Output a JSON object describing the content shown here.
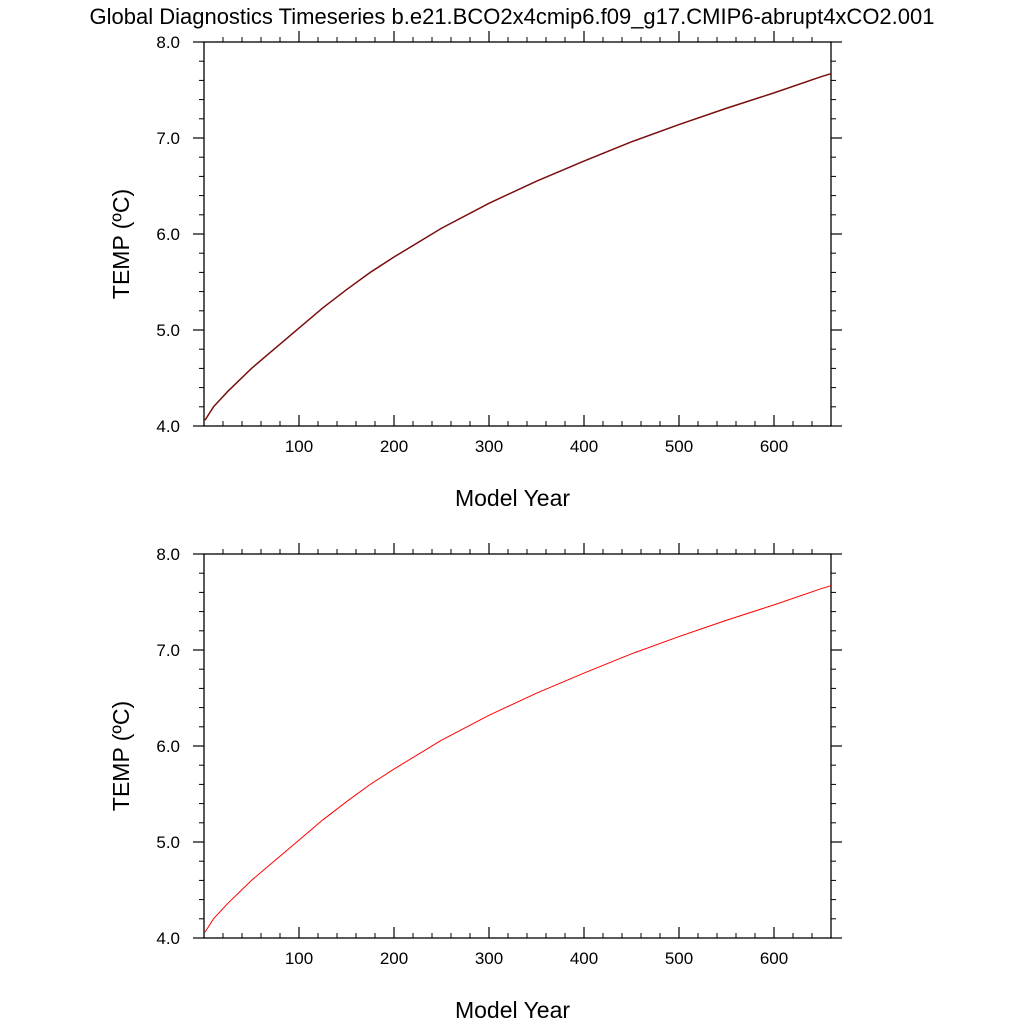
{
  "title": "Global Diagnostics Timeseries b.e21.BCO2x4cmip6.f09_g17.CMIP6-abrupt4xCO2.001",
  "chart_data": [
    {
      "type": "line",
      "xlabel": "Model Year",
      "ylabel": "TEMP (ºC)",
      "xlim": [
        0,
        660
      ],
      "ylim": [
        4.0,
        8.0
      ],
      "x_ticks": [
        100,
        200,
        300,
        400,
        500,
        600
      ],
      "x_tick_labels": [
        "100",
        "200",
        "300",
        "400",
        "500",
        "600"
      ],
      "y_ticks": [
        4.0,
        5.0,
        6.0,
        7.0,
        8.0
      ],
      "y_tick_labels": [
        "4.0",
        "5.0",
        "6.0",
        "7.0",
        "8.0"
      ],
      "grid": false,
      "series": [
        {
          "color": "#7a0e0e",
          "x": [
            1,
            10,
            25,
            50,
            75,
            100,
            125,
            150,
            175,
            200,
            250,
            300,
            350,
            400,
            450,
            500,
            550,
            600,
            650,
            660
          ],
          "y": [
            4.06,
            4.2,
            4.36,
            4.6,
            4.81,
            5.02,
            5.23,
            5.42,
            5.6,
            5.76,
            6.06,
            6.32,
            6.55,
            6.76,
            6.96,
            7.14,
            7.31,
            7.47,
            7.64,
            7.67
          ]
        }
      ]
    },
    {
      "type": "line",
      "xlabel": "Model Year",
      "ylabel": "TEMP (ºC)",
      "xlim": [
        0,
        660
      ],
      "ylim": [
        4.0,
        8.0
      ],
      "x_ticks": [
        100,
        200,
        300,
        400,
        500,
        600
      ],
      "x_tick_labels": [
        "100",
        "200",
        "300",
        "400",
        "500",
        "600"
      ],
      "y_ticks": [
        4.0,
        5.0,
        6.0,
        7.0,
        8.0
      ],
      "y_tick_labels": [
        "4.0",
        "5.0",
        "6.0",
        "7.0",
        "8.0"
      ],
      "grid": false,
      "series": [
        {
          "color": "#ff0000",
          "x": [
            1,
            10,
            25,
            50,
            75,
            100,
            125,
            150,
            175,
            200,
            250,
            300,
            350,
            400,
            450,
            500,
            550,
            600,
            650,
            660
          ],
          "y": [
            4.06,
            4.2,
            4.36,
            4.6,
            4.81,
            5.02,
            5.23,
            5.42,
            5.6,
            5.76,
            6.06,
            6.32,
            6.55,
            6.76,
            6.96,
            7.14,
            7.31,
            7.47,
            7.64,
            7.67
          ]
        }
      ]
    }
  ]
}
